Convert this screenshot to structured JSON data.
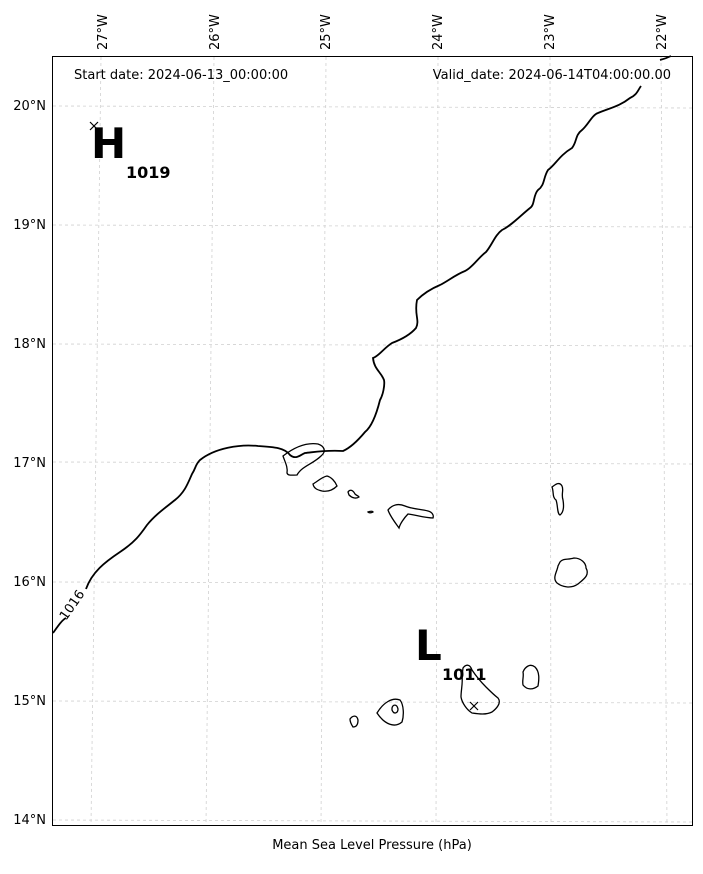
{
  "header": {
    "start_date": "Start date: 2024-06-13_00:00:00",
    "valid_date": "Valid_date: 2024-06-14T04:00:00.00"
  },
  "xlabel": "Mean Sea Level Pressure (hPa)",
  "lon_ticks": [
    "27°W",
    "26°W",
    "25°W",
    "24°W",
    "23°W",
    "22°W"
  ],
  "lat_ticks": [
    "20°N",
    "19°N",
    "18°N",
    "17°N",
    "16°N",
    "15°N",
    "14°N"
  ],
  "pressure_systems": [
    {
      "symbol": "H",
      "value": "1019",
      "lon": -27.0,
      "lat": 19.83
    },
    {
      "symbol": "L",
      "value": "1011",
      "lon": -23.65,
      "lat": 14.96
    }
  ],
  "isobars": [
    {
      "level": "1016",
      "label": "1016"
    }
  ],
  "chart_data": {
    "type": "map",
    "variable": "Mean Sea Level Pressure (hPa)",
    "lon_range": [
      -27.3,
      -21.8
    ],
    "lat_range": [
      13.9,
      20.4
    ],
    "grid": true,
    "pressure_centers": [
      {
        "type": "H",
        "value": 1019,
        "lon": -27.0,
        "lat": 19.83
      },
      {
        "type": "L",
        "value": 1011,
        "lon": -23.65,
        "lat": 14.96
      }
    ],
    "contours": [
      1016
    ]
  }
}
